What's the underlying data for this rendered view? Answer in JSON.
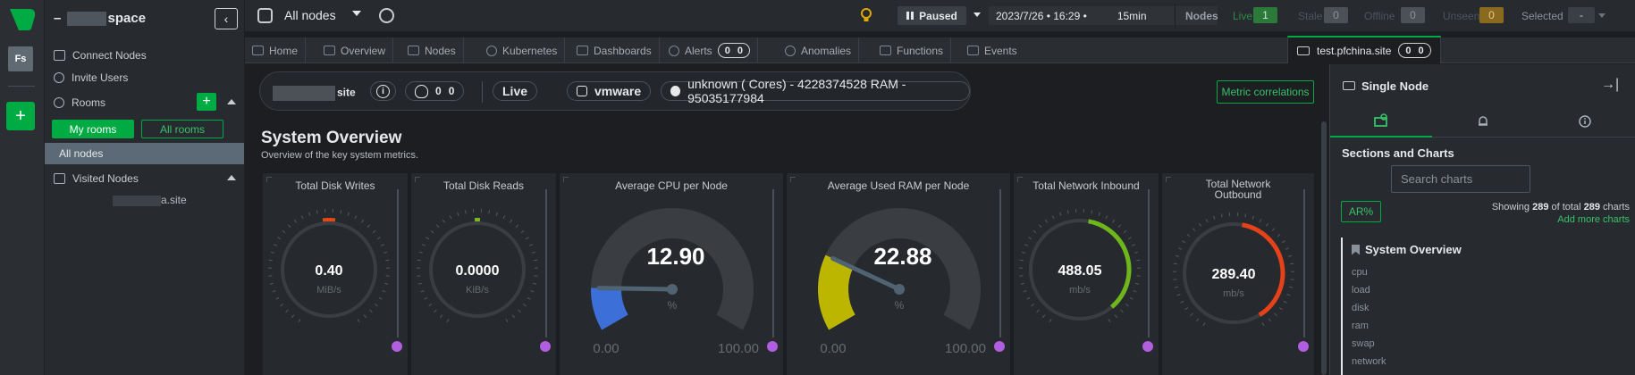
{
  "space": {
    "name_prefix": "–",
    "name_suffix": "space",
    "avatar": "Fs"
  },
  "sidebar": {
    "connect_nodes": "Connect Nodes",
    "invite_users": "Invite Users",
    "rooms": "Rooms",
    "my_rooms": "My rooms",
    "all_rooms": "All rooms",
    "all_nodes": "All nodes",
    "visited_nodes": "Visited Nodes",
    "visited_site_suffix": "a.site"
  },
  "topbar": {
    "room": "All nodes",
    "status": "Paused",
    "datetime": "2023/7/26 • 16:29 •",
    "range": "15min",
    "nodes_label": "Nodes",
    "live_label": "Live",
    "live_count": "1",
    "stale_label": "Stale",
    "stale_count": "0",
    "offline_label": "Offline",
    "offline_count": "0",
    "unseen_label": "Unseen",
    "unseen_count": "0",
    "selected_label": "Selected",
    "selected_count": "-"
  },
  "tabs": {
    "home": "Home",
    "overview": "Overview",
    "nodes": "Nodes",
    "kubernetes": "Kubernetes",
    "dashboards": "Dashboards",
    "alerts": "Alerts",
    "alerts_critical": "0",
    "alerts_warning": "0",
    "anomalies": "Anomalies",
    "functions": "Functions",
    "events": "Events",
    "node_tab": "test.pfchina.site",
    "node_critical": "0",
    "node_warning": "0"
  },
  "node_header": {
    "name_suffix": "site",
    "alerts_critical": "0",
    "alerts_warning": "0",
    "live": "Live",
    "virtualization": "vmware",
    "specs": "unknown ( Cores) - 4228374528 RAM - 95035177984",
    "metric_correlations": "Metric correlations"
  },
  "section": {
    "title": "System Overview",
    "subtitle": "Overview of the key system metrics."
  },
  "gauges": [
    {
      "title": "Total Disk Writes",
      "value": "0.40",
      "unit": "MiB/s",
      "color": "#e0491c",
      "fill_fraction": 0.04
    },
    {
      "title": "Total Disk Reads",
      "value": "0.0000",
      "unit": "KiB/s",
      "color": "#7dba20",
      "fill_fraction": 0.01
    },
    {
      "title": "Average CPU per Node",
      "value": "12.90",
      "unit": "%",
      "min": "0.00",
      "max": "100.00",
      "color": "#3d6fd9",
      "fill_fraction": 0.129
    },
    {
      "title": "Average Used RAM per Node",
      "value": "22.88",
      "unit": "%",
      "min": "0.00",
      "max": "100.00",
      "color": "#bdb600",
      "fill_fraction": 0.2288
    },
    {
      "title": "Total Network Inbound",
      "value": "488.05",
      "unit": "mb/s",
      "color": "#6fb51c",
      "fill_fraction": 0.45
    },
    {
      "title_line1": "Total Network",
      "title_line2": "Outbound",
      "value": "289.40",
      "unit": "mb/s",
      "color": "#e6421a",
      "fill_fraction": 0.48
    }
  ],
  "right_panel": {
    "title": "Single Node",
    "sections_title": "Sections and Charts",
    "search_placeholder": "Search charts",
    "ar_button": "AR%",
    "showing_prefix": "Showing",
    "showing_count": "289",
    "showing_mid": "of total",
    "showing_total": "289",
    "showing_suffix": "charts",
    "add_more": "Add more charts",
    "tree_title": "System Overview",
    "tree_items": [
      "cpu",
      "load",
      "disk",
      "ram",
      "swap",
      "network"
    ]
  }
}
